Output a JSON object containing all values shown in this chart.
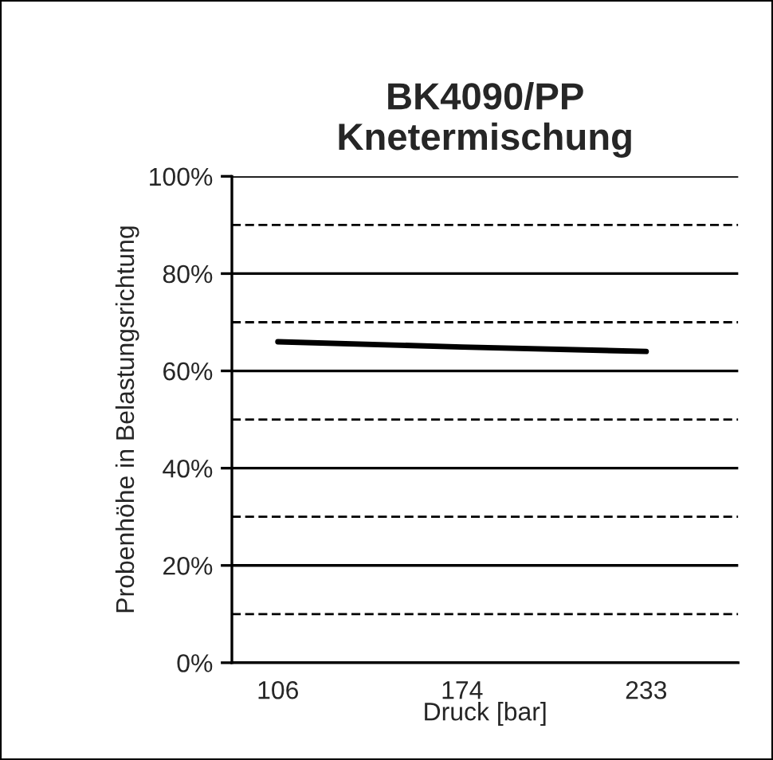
{
  "chart_data": {
    "type": "line",
    "title": "BK4090/PP\nKnetermischung",
    "xlabel": "Druck [bar]",
    "ylabel": "Probenhöhe in Belastungsrichtung",
    "categories": [
      "106",
      "174",
      "233"
    ],
    "series": [
      {
        "color": "#000000",
        "values": [
          66.0,
          64.9,
          64.0
        ]
      }
    ],
    "ylim": [
      0,
      100
    ],
    "yticks": [
      {
        "value": 0,
        "label": "0%"
      },
      {
        "value": 20,
        "label": "20%"
      },
      {
        "value": 40,
        "label": "40%"
      },
      {
        "value": 60,
        "label": "60%"
      },
      {
        "value": 80,
        "label": "80%"
      },
      {
        "value": 100,
        "label": "100%"
      }
    ],
    "grid": "y",
    "legend": false,
    "marker": "none",
    "line_style": "solid",
    "ref_lines": [
      {
        "axis": "y",
        "value": 10,
        "color": "#000000",
        "line_style": "dashed"
      },
      {
        "axis": "y",
        "value": 30,
        "color": "#000000",
        "line_style": "dashed"
      },
      {
        "axis": "y",
        "value": 50,
        "color": "#000000",
        "line_style": "dashed"
      },
      {
        "axis": "y",
        "value": 70,
        "color": "#000000",
        "line_style": "dashed"
      },
      {
        "axis": "y",
        "value": 90,
        "color": "#000000",
        "line_style": "dashed"
      }
    ]
  }
}
